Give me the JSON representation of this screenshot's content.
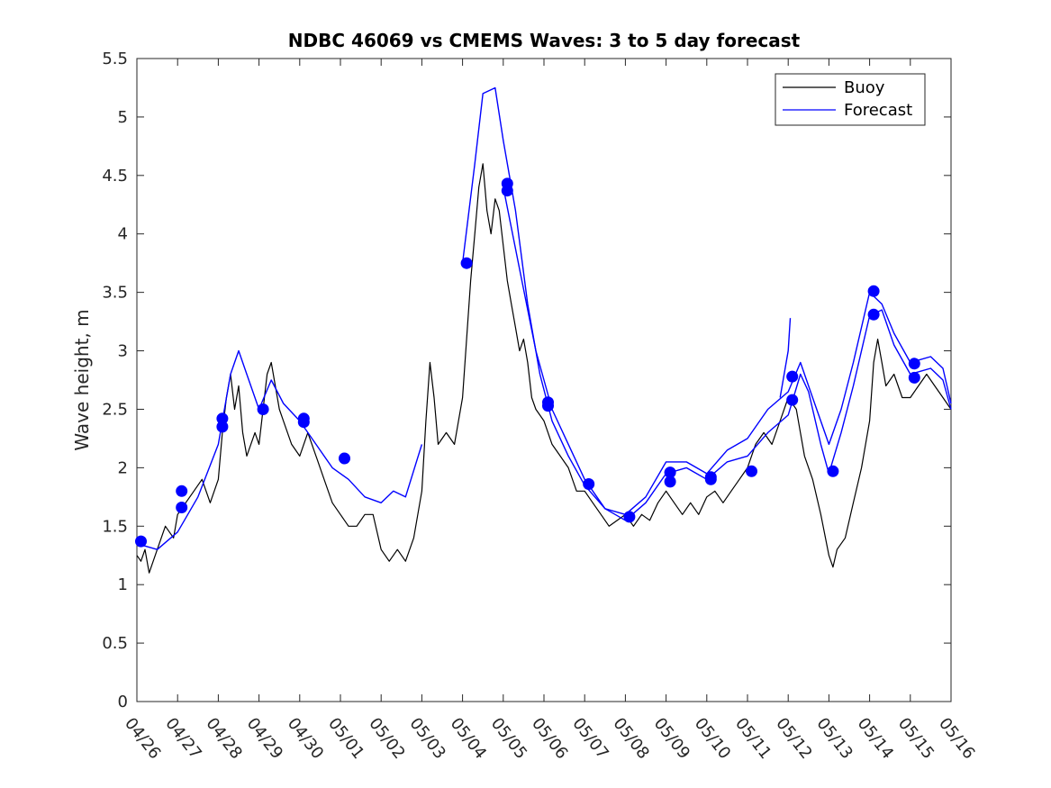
{
  "chart_data": {
    "type": "line",
    "title": "NDBC 46069 vs CMEMS Waves: 3 to 5 day forecast",
    "xlabel": "",
    "ylabel": "Wave height, m",
    "x_tick_labels": [
      "04/26",
      "04/27",
      "04/28",
      "04/29",
      "04/30",
      "05/01",
      "05/02",
      "05/03",
      "05/04",
      "05/05",
      "05/06",
      "05/07",
      "05/08",
      "05/09",
      "05/10",
      "05/11",
      "05/12",
      "05/13",
      "05/14",
      "05/15",
      "05/16"
    ],
    "xlim": [
      0,
      20
    ],
    "ylim": [
      0,
      5.5
    ],
    "y_ticks": [
      "0",
      "0.5",
      "1",
      "1.5",
      "2",
      "2.5",
      "3",
      "3.5",
      "4",
      "4.5",
      "5",
      "5.5"
    ],
    "legend": {
      "position": "top-right",
      "entries": [
        "Buoy",
        "Forecast"
      ]
    },
    "colors": {
      "buoy": "#000000",
      "forecast": "#0000ff"
    },
    "series": [
      {
        "name": "Buoy",
        "points": [
          [
            0,
            1.25
          ],
          [
            0.1,
            1.2
          ],
          [
            0.2,
            1.3
          ],
          [
            0.3,
            1.1
          ],
          [
            0.5,
            1.3
          ],
          [
            0.7,
            1.5
          ],
          [
            0.9,
            1.4
          ],
          [
            1,
            1.6
          ],
          [
            1.2,
            1.7
          ],
          [
            1.4,
            1.8
          ],
          [
            1.6,
            1.9
          ],
          [
            1.8,
            1.7
          ],
          [
            2,
            1.9
          ],
          [
            2.1,
            2.3
          ],
          [
            2.2,
            2.6
          ],
          [
            2.3,
            2.8
          ],
          [
            2.4,
            2.5
          ],
          [
            2.5,
            2.7
          ],
          [
            2.6,
            2.3
          ],
          [
            2.7,
            2.1
          ],
          [
            2.9,
            2.3
          ],
          [
            3.0,
            2.2
          ],
          [
            3.1,
            2.5
          ],
          [
            3.2,
            2.8
          ],
          [
            3.3,
            2.9
          ],
          [
            3.4,
            2.7
          ],
          [
            3.5,
            2.5
          ],
          [
            3.6,
            2.4
          ],
          [
            3.8,
            2.2
          ],
          [
            4.0,
            2.1
          ],
          [
            4.2,
            2.3
          ],
          [
            4.4,
            2.1
          ],
          [
            4.6,
            1.9
          ],
          [
            4.8,
            1.7
          ],
          [
            5.0,
            1.6
          ],
          [
            5.2,
            1.5
          ],
          [
            5.4,
            1.5
          ],
          [
            5.6,
            1.6
          ],
          [
            5.8,
            1.6
          ],
          [
            6.0,
            1.3
          ],
          [
            6.2,
            1.2
          ],
          [
            6.4,
            1.3
          ],
          [
            6.6,
            1.2
          ],
          [
            6.8,
            1.4
          ],
          [
            7.0,
            1.8
          ],
          [
            7.1,
            2.4
          ],
          [
            7.2,
            2.9
          ],
          [
            7.3,
            2.6
          ],
          [
            7.4,
            2.2
          ],
          [
            7.6,
            2.3
          ],
          [
            7.8,
            2.2
          ],
          [
            8.0,
            2.6
          ],
          [
            8.1,
            3.1
          ],
          [
            8.2,
            3.6
          ],
          [
            8.3,
            4.0
          ],
          [
            8.4,
            4.4
          ],
          [
            8.5,
            4.6
          ],
          [
            8.6,
            4.2
          ],
          [
            8.7,
            4.0
          ],
          [
            8.8,
            4.3
          ],
          [
            8.9,
            4.2
          ],
          [
            9.0,
            3.9
          ],
          [
            9.1,
            3.6
          ],
          [
            9.2,
            3.4
          ],
          [
            9.3,
            3.2
          ],
          [
            9.4,
            3.0
          ],
          [
            9.5,
            3.1
          ],
          [
            9.6,
            2.9
          ],
          [
            9.7,
            2.6
          ],
          [
            9.8,
            2.5
          ],
          [
            10.0,
            2.4
          ],
          [
            10.2,
            2.2
          ],
          [
            10.4,
            2.1
          ],
          [
            10.6,
            2.0
          ],
          [
            10.8,
            1.8
          ],
          [
            11.0,
            1.8
          ],
          [
            11.2,
            1.7
          ],
          [
            11.4,
            1.6
          ],
          [
            11.6,
            1.5
          ],
          [
            11.8,
            1.55
          ],
          [
            12.0,
            1.6
          ],
          [
            12.2,
            1.5
          ],
          [
            12.4,
            1.6
          ],
          [
            12.6,
            1.55
          ],
          [
            12.8,
            1.7
          ],
          [
            13.0,
            1.8
          ],
          [
            13.2,
            1.7
          ],
          [
            13.4,
            1.6
          ],
          [
            13.6,
            1.7
          ],
          [
            13.8,
            1.6
          ],
          [
            14.0,
            1.75
          ],
          [
            14.2,
            1.8
          ],
          [
            14.4,
            1.7
          ],
          [
            14.6,
            1.8
          ],
          [
            14.8,
            1.9
          ],
          [
            15.0,
            2.0
          ],
          [
            15.2,
            2.2
          ],
          [
            15.4,
            2.3
          ],
          [
            15.6,
            2.2
          ],
          [
            15.8,
            2.4
          ],
          [
            16.0,
            2.6
          ],
          [
            16.2,
            2.5
          ],
          [
            16.4,
            2.1
          ],
          [
            16.6,
            1.9
          ],
          [
            16.8,
            1.6
          ],
          [
            17.0,
            1.25
          ],
          [
            17.1,
            1.15
          ],
          [
            17.2,
            1.3
          ],
          [
            17.4,
            1.4
          ],
          [
            17.6,
            1.7
          ],
          [
            17.8,
            2.0
          ],
          [
            18.0,
            2.4
          ],
          [
            18.1,
            2.9
          ],
          [
            18.2,
            3.1
          ],
          [
            18.3,
            2.9
          ],
          [
            18.4,
            2.7
          ],
          [
            18.6,
            2.8
          ],
          [
            18.8,
            2.6
          ],
          [
            19.0,
            2.6
          ],
          [
            19.2,
            2.7
          ],
          [
            19.4,
            2.8
          ],
          [
            19.6,
            2.7
          ],
          [
            19.8,
            2.6
          ],
          [
            20.0,
            2.5
          ]
        ]
      },
      {
        "name": "Forecast",
        "points": [
          [
            0,
            1.35
          ],
          [
            0.5,
            1.3
          ],
          [
            1.0,
            1.45
          ],
          [
            1.5,
            1.75
          ],
          [
            2.0,
            2.2
          ],
          [
            2.3,
            2.8
          ],
          [
            2.5,
            3.0
          ],
          [
            2.7,
            2.8
          ],
          [
            3.0,
            2.5
          ],
          [
            3.3,
            2.75
          ],
          [
            3.6,
            2.55
          ],
          [
            4.0,
            2.4
          ],
          [
            4.4,
            2.2
          ],
          [
            4.8,
            2.0
          ],
          [
            5.2,
            1.9
          ],
          [
            5.6,
            1.75
          ],
          [
            6.0,
            1.7
          ],
          [
            6.3,
            1.8
          ],
          [
            6.6,
            1.75
          ],
          [
            7.0,
            2.2
          ]
        ]
      },
      {
        "name": "",
        "points": [
          [
            8.0,
            3.75
          ],
          [
            8.3,
            4.6
          ],
          [
            8.5,
            5.2
          ],
          [
            8.8,
            5.25
          ],
          [
            9.0,
            4.8
          ],
          [
            9.3,
            4.2
          ],
          [
            9.6,
            3.4
          ],
          [
            9.9,
            2.8
          ],
          [
            10.2,
            2.4
          ],
          [
            10.6,
            2.1
          ],
          [
            11.0,
            1.85
          ],
          [
            11.5,
            1.65
          ],
          [
            12.0,
            1.55
          ],
          [
            12.5,
            1.7
          ],
          [
            13.0,
            1.95
          ],
          [
            13.5,
            2.0
          ],
          [
            14.0,
            1.9
          ],
          [
            14.5,
            2.05
          ],
          [
            15.0,
            2.1
          ],
          [
            15.5,
            2.3
          ],
          [
            16.0,
            2.45
          ],
          [
            16.3,
            2.8
          ],
          [
            16.5,
            2.65
          ],
          [
            16.8,
            2.2
          ],
          [
            17.0,
            1.95
          ],
          [
            17.3,
            2.3
          ],
          [
            17.6,
            2.7
          ],
          [
            18.0,
            3.3
          ],
          [
            18.3,
            3.35
          ],
          [
            18.6,
            3.05
          ],
          [
            19.0,
            2.8
          ],
          [
            19.5,
            2.85
          ],
          [
            19.8,
            2.75
          ],
          [
            20.0,
            2.5
          ]
        ]
      },
      {
        "name": "",
        "points": [
          [
            9.0,
            4.4
          ],
          [
            9.4,
            3.7
          ],
          [
            9.8,
            3.0
          ],
          [
            10.2,
            2.5
          ],
          [
            10.6,
            2.2
          ],
          [
            11.0,
            1.9
          ],
          [
            11.5,
            1.65
          ],
          [
            12.0,
            1.6
          ],
          [
            12.5,
            1.75
          ],
          [
            13.0,
            2.05
          ],
          [
            13.5,
            2.05
          ],
          [
            14.0,
            1.95
          ],
          [
            14.5,
            2.15
          ],
          [
            15.0,
            2.25
          ],
          [
            15.5,
            2.5
          ],
          [
            16.0,
            2.65
          ],
          [
            16.3,
            2.9
          ],
          [
            16.6,
            2.6
          ],
          [
            17.0,
            2.2
          ],
          [
            17.3,
            2.5
          ],
          [
            17.6,
            2.9
          ],
          [
            18.0,
            3.5
          ],
          [
            18.3,
            3.4
          ],
          [
            18.6,
            3.15
          ],
          [
            19.0,
            2.9
          ],
          [
            19.5,
            2.95
          ],
          [
            19.8,
            2.85
          ],
          [
            20.0,
            2.55
          ]
        ]
      },
      {
        "name": "",
        "points": [
          [
            15.8,
            2.6
          ],
          [
            16.0,
            3.0
          ],
          [
            16.05,
            3.28
          ]
        ]
      }
    ],
    "markers": [
      [
        0.1,
        1.37
      ],
      [
        1.1,
        1.8
      ],
      [
        1.1,
        1.66
      ],
      [
        2.1,
        2.42
      ],
      [
        2.1,
        2.35
      ],
      [
        3.1,
        2.5
      ],
      [
        4.1,
        2.42
      ],
      [
        4.1,
        2.39
      ],
      [
        5.1,
        2.08
      ],
      [
        8.1,
        3.75
      ],
      [
        9.1,
        4.43
      ],
      [
        9.1,
        4.37
      ],
      [
        10.1,
        2.56
      ],
      [
        10.1,
        2.53
      ],
      [
        11.1,
        1.86
      ],
      [
        12.1,
        1.58
      ],
      [
        13.1,
        1.96
      ],
      [
        13.1,
        1.88
      ],
      [
        14.1,
        1.92
      ],
      [
        14.1,
        1.9
      ],
      [
        15.1,
        1.97
      ],
      [
        16.1,
        2.78
      ],
      [
        16.1,
        2.58
      ],
      [
        17.1,
        1.97
      ],
      [
        18.1,
        3.51
      ],
      [
        18.1,
        3.31
      ],
      [
        19.1,
        2.89
      ],
      [
        19.1,
        2.77
      ]
    ]
  }
}
